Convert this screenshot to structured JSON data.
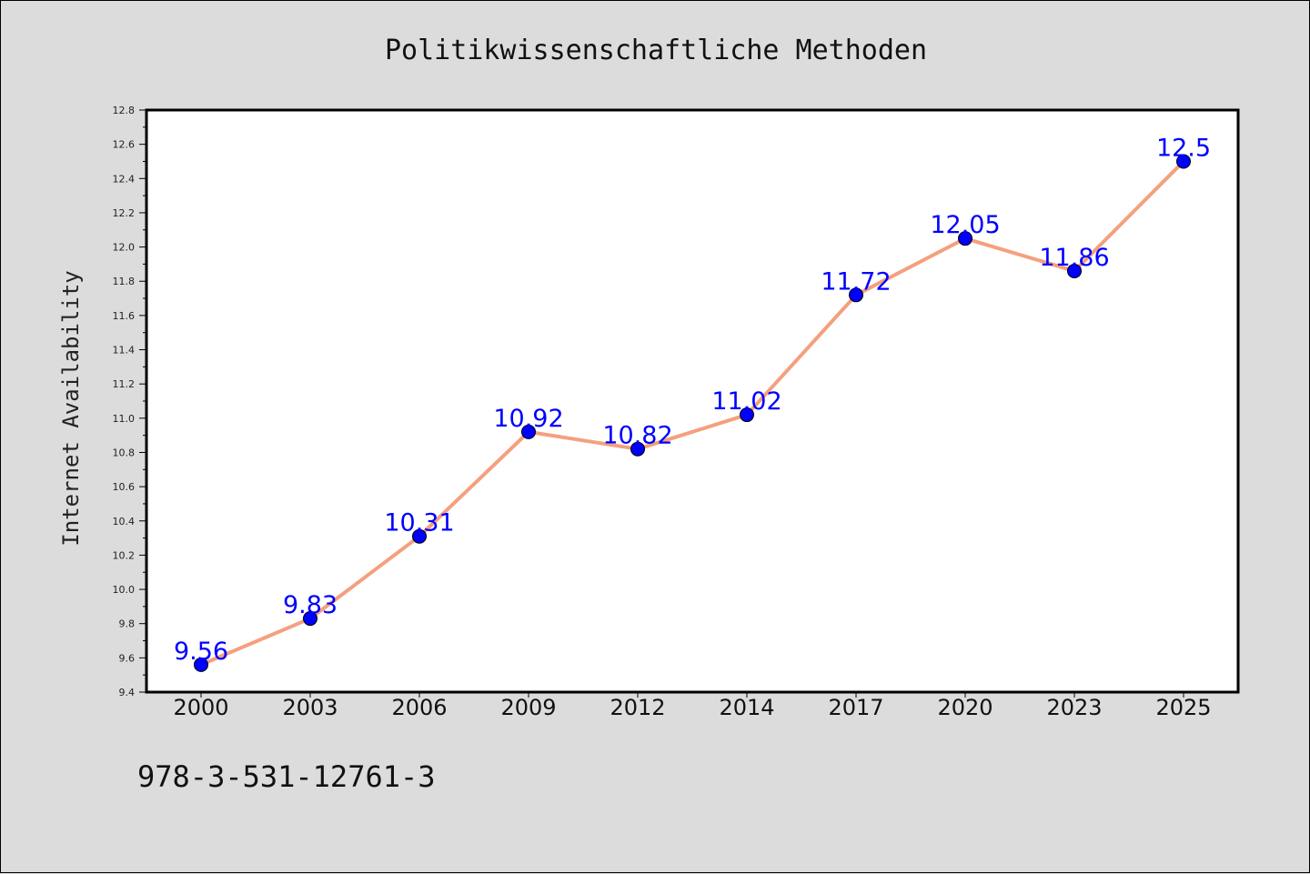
{
  "chart_data": {
    "type": "line",
    "title": "Politikwissenschaftliche Methoden",
    "xlabel": "",
    "ylabel": "Internet Availability",
    "categories": [
      "2000",
      "2003",
      "2006",
      "2009",
      "2012",
      "2014",
      "2017",
      "2020",
      "2023",
      "2025"
    ],
    "series": [
      {
        "values": [
          9.56,
          9.83,
          10.31,
          10.92,
          10.82,
          11.02,
          11.72,
          12.05,
          11.86,
          12.5
        ],
        "line_color": "#f4a07e",
        "marker_color": "#0000ff"
      }
    ],
    "data_labels": [
      "9.56",
      "9.83",
      "10.31",
      "10.92",
      "10.82",
      "11.02",
      "11.72",
      "12.05",
      "11.86",
      "12.5"
    ],
    "ylim": [
      9.4,
      12.8
    ],
    "yticks": [
      "9.4",
      "9.6",
      "9.8",
      "10.0",
      "10.2",
      "10.4",
      "10.6",
      "10.8",
      "11.0",
      "11.2",
      "11.4",
      "11.6",
      "11.8",
      "12.0",
      "12.2",
      "12.4",
      "12.6",
      "12.8"
    ],
    "grid": false,
    "legend": "none"
  },
  "footer": {
    "isbn": "978-3-531-12761-3"
  }
}
